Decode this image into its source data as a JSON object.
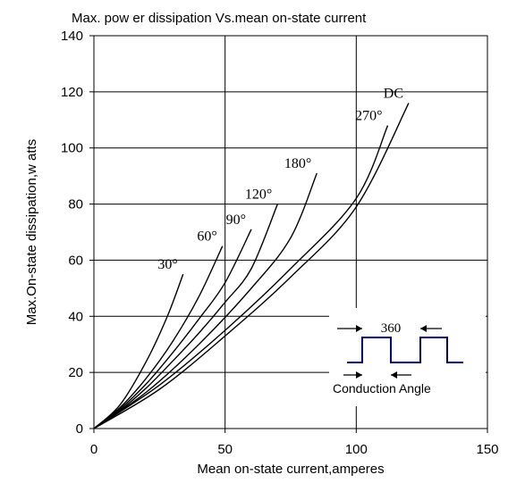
{
  "chart_data": {
    "type": "line",
    "title": "Max. pow er dissipation Vs.mean on-state current",
    "xlabel": "Mean on-state current,amperes",
    "ylabel": "Max.On-state dissipation,w atts",
    "xlim": [
      0,
      150
    ],
    "ylim": [
      0,
      140
    ],
    "xticks": [
      "0",
      "50",
      "100",
      "150"
    ],
    "yticks": [
      "0",
      "20",
      "40",
      "60",
      "80",
      "100",
      "120",
      "140"
    ],
    "grid": true,
    "series": [
      {
        "name": "30°",
        "x": [
          0,
          10,
          20,
          28,
          34
        ],
        "y": [
          0,
          8.5,
          24,
          40,
          55
        ]
      },
      {
        "name": "60°",
        "x": [
          0,
          10,
          20,
          30,
          40,
          49
        ],
        "y": [
          0,
          7.5,
          18,
          31,
          47,
          65
        ]
      },
      {
        "name": "90°",
        "x": [
          0,
          10,
          20,
          30,
          40,
          50,
          60
        ],
        "y": [
          0,
          7,
          16,
          27,
          39,
          52,
          71
        ]
      },
      {
        "name": "120°",
        "x": [
          0,
          10,
          20,
          30,
          40,
          50,
          60,
          70
        ],
        "y": [
          0,
          6.5,
          14.5,
          24,
          34,
          45,
          57,
          80
        ]
      },
      {
        "name": "180°",
        "x": [
          0,
          20,
          40,
          60,
          75,
          85
        ],
        "y": [
          0,
          13,
          30,
          50,
          68,
          91
        ]
      },
      {
        "name": "270°",
        "x": [
          0,
          25,
          50,
          75,
          100,
          112
        ],
        "y": [
          0,
          15.5,
          35,
          57,
          82,
          108
        ]
      },
      {
        "name": "DC",
        "x": [
          0,
          25,
          50,
          75,
          100,
          120
        ],
        "y": [
          0,
          14,
          33,
          54,
          79,
          116
        ]
      }
    ],
    "inset": {
      "period_label": "360",
      "angle_label": "Conduction Angle"
    },
    "colors": {
      "curves": "#000000",
      "inset_wave": "#000080"
    }
  }
}
